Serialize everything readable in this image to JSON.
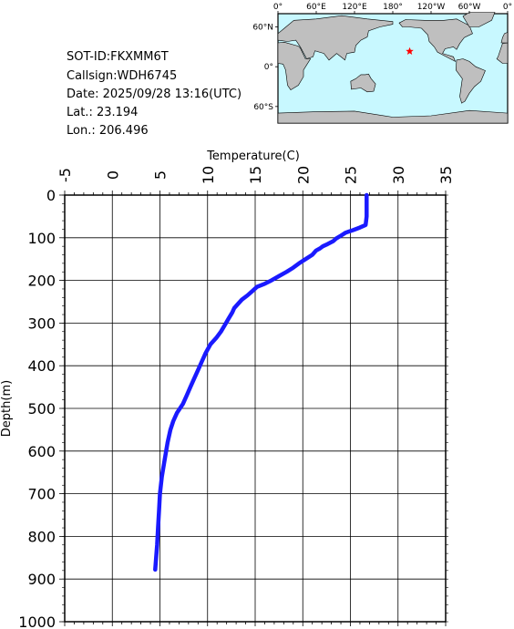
{
  "info": {
    "sot_id": "SOT-ID:FKXMM6T",
    "callsign": "Callsign:WDH6745",
    "date": "Date:  2025/09/28 13:16(UTC)",
    "lat": "Lat.:   23.194",
    "lon": "Lon.:  206.496"
  },
  "map": {
    "lon_labels": [
      "0°",
      "60°E",
      "120°E",
      "180°",
      "120°W",
      "60°W",
      "0°"
    ],
    "lat_labels": [
      "60°N",
      "0°",
      "60°S"
    ],
    "ocean_color": "#c8f8ff",
    "land_color": "#bfbfbf",
    "marker_color": "#ff0000",
    "marker": {
      "lon": 206.496,
      "lat": 23.194
    }
  },
  "chart_data": {
    "type": "line",
    "xlabel": "Temperature(C)",
    "ylabel": "Depth(m)",
    "xlim": [
      -5,
      35
    ],
    "ylim": [
      0,
      1000
    ],
    "x_ticks": [
      "-5",
      "0",
      "5",
      "10",
      "15",
      "20",
      "25",
      "30",
      "35"
    ],
    "y_ticks": [
      "0",
      "100",
      "200",
      "300",
      "400",
      "500",
      "600",
      "700",
      "800",
      "900",
      "1000"
    ],
    "x_axis_position": "top",
    "y_inverted": true,
    "grid": true,
    "line_color": "#1a1aff",
    "series": [
      {
        "points": [
          [
            26.7,
            0
          ],
          [
            26.7,
            20
          ],
          [
            26.7,
            50
          ],
          [
            26.6,
            70
          ],
          [
            26.0,
            76
          ],
          [
            25.3,
            82
          ],
          [
            24.5,
            88
          ],
          [
            24.0,
            95
          ],
          [
            23.5,
            102
          ],
          [
            23.2,
            108
          ],
          [
            22.6,
            115
          ],
          [
            22.1,
            120
          ],
          [
            21.8,
            125
          ],
          [
            21.4,
            130
          ],
          [
            21.0,
            140
          ],
          [
            20.3,
            150
          ],
          [
            19.6,
            160
          ],
          [
            19.0,
            170
          ],
          [
            18.3,
            180
          ],
          [
            17.5,
            190
          ],
          [
            16.7,
            200
          ],
          [
            16.0,
            208
          ],
          [
            15.2,
            215
          ],
          [
            14.7,
            225
          ],
          [
            14.2,
            235
          ],
          [
            13.6,
            245
          ],
          [
            13.2,
            255
          ],
          [
            12.8,
            265
          ],
          [
            12.6,
            275
          ],
          [
            12.2,
            290
          ],
          [
            11.8,
            305
          ],
          [
            11.4,
            320
          ],
          [
            10.9,
            335
          ],
          [
            10.3,
            350
          ],
          [
            9.8,
            370
          ],
          [
            9.4,
            390
          ],
          [
            9.0,
            410
          ],
          [
            8.6,
            430
          ],
          [
            8.2,
            450
          ],
          [
            7.8,
            470
          ],
          [
            7.4,
            490
          ],
          [
            6.8,
            510
          ],
          [
            6.4,
            530
          ],
          [
            6.1,
            550
          ],
          [
            5.8,
            580
          ],
          [
            5.5,
            620
          ],
          [
            5.2,
            660
          ],
          [
            5.0,
            700
          ],
          [
            4.9,
            740
          ],
          [
            4.8,
            780
          ],
          [
            4.7,
            820
          ],
          [
            4.6,
            850
          ],
          [
            4.5,
            878
          ]
        ]
      }
    ]
  }
}
